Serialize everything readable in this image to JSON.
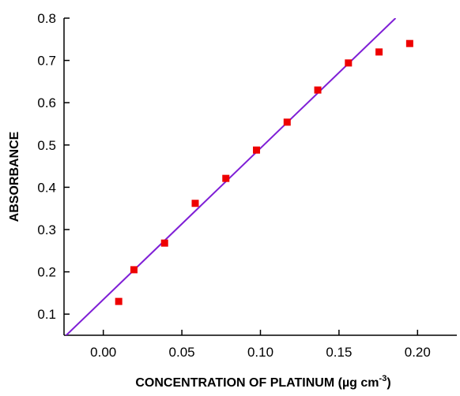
{
  "chart_data": {
    "type": "scatter",
    "title": "",
    "xlabel": "CONCENTRATION OF PLATINUM (µg cm",
    "xlabel_superscript": "-3",
    "xlabel_suffix": ")",
    "ylabel": "ABSORBANCE",
    "xlim": [
      -0.025,
      0.225
    ],
    "ylim": [
      0.05,
      0.8
    ],
    "x_ticks": [
      0.0,
      0.05,
      0.1,
      0.15,
      0.2
    ],
    "x_tick_labels": [
      "0.00",
      "0.05",
      "0.10",
      "0.15",
      "0.20"
    ],
    "y_ticks": [
      0.1,
      0.2,
      0.3,
      0.4,
      0.5,
      0.6,
      0.7,
      0.8
    ],
    "y_tick_labels": [
      "0.1",
      "0.2",
      "0.3",
      "0.4",
      "0.5",
      "0.6",
      "0.7",
      "0.8"
    ],
    "grid": false,
    "legend": "none",
    "series": [
      {
        "type": "scatter",
        "marker": "square",
        "color": "#ee0000",
        "points": [
          {
            "x": 0.0098,
            "y": 0.13
          },
          {
            "x": 0.0195,
            "y": 0.205
          },
          {
            "x": 0.039,
            "y": 0.268
          },
          {
            "x": 0.0585,
            "y": 0.362
          },
          {
            "x": 0.078,
            "y": 0.421
          },
          {
            "x": 0.0975,
            "y": 0.488
          },
          {
            "x": 0.117,
            "y": 0.554
          },
          {
            "x": 0.1365,
            "y": 0.63
          },
          {
            "x": 0.156,
            "y": 0.694
          },
          {
            "x": 0.1755,
            "y": 0.72
          },
          {
            "x": 0.195,
            "y": 0.74
          }
        ]
      },
      {
        "type": "line",
        "style": "linear-fit",
        "color": "#7f1fd6",
        "points": [
          {
            "x": -0.025,
            "y": 0.045
          },
          {
            "x": 0.186,
            "y": 0.8
          }
        ]
      }
    ]
  }
}
